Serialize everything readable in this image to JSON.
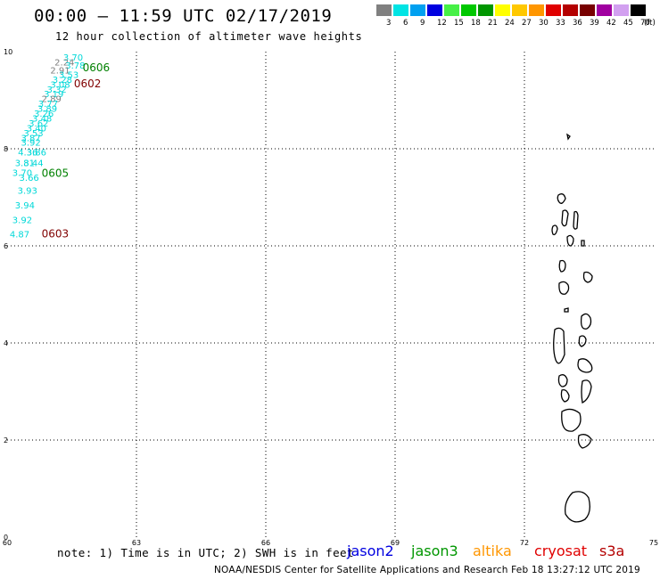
{
  "header": {
    "title": "00:00 – 11:59 UTC 02/17/2019",
    "subtitle": "12 hour collection of altimeter wave heights"
  },
  "colorbar": {
    "unit": "(ft)",
    "bins": [
      {
        "label": "3",
        "color": "#808080"
      },
      {
        "label": "6",
        "color": "#00e4e4"
      },
      {
        "label": "9",
        "color": "#00a0f0"
      },
      {
        "label": "12",
        "color": "#0000e0"
      },
      {
        "label": "15",
        "color": "#46f046"
      },
      {
        "label": "18",
        "color": "#00c800"
      },
      {
        "label": "21",
        "color": "#009600"
      },
      {
        "label": "24",
        "color": "#ffff00"
      },
      {
        "label": "27",
        "color": "#ffc800"
      },
      {
        "label": "30",
        "color": "#ff9600"
      },
      {
        "label": "33",
        "color": "#e00000"
      },
      {
        "label": "36",
        "color": "#b40000"
      },
      {
        "label": "39",
        "color": "#780000"
      },
      {
        "label": "42",
        "color": "#a000a0"
      },
      {
        "label": "45",
        "color": "#d2a0f0"
      },
      {
        "label": "70",
        "color": "#000000"
      }
    ]
  },
  "map": {
    "lon_range": [
      60,
      75
    ],
    "lat_range": [
      0,
      10
    ],
    "x_ticks": [
      "60",
      "63",
      "66",
      "69",
      "72",
      "75"
    ],
    "y_ticks": [
      "0",
      "2",
      "4",
      "6",
      "8",
      "10"
    ],
    "grid": true
  },
  "observations": [
    {
      "lon": 61.3,
      "lat": 9.82,
      "value": "3.70",
      "color": "#00d8d8"
    },
    {
      "lon": 61.1,
      "lat": 9.72,
      "value": "2.24",
      "color": "#808080"
    },
    {
      "lon": 61.35,
      "lat": 9.65,
      "value": "3.78",
      "color": "#00d8d8"
    },
    {
      "lon": 61.0,
      "lat": 9.55,
      "value": "2.91",
      "color": "#808080"
    },
    {
      "lon": 61.2,
      "lat": 9.46,
      "value": "3.53",
      "color": "#00d8d8"
    },
    {
      "lon": 61.05,
      "lat": 9.36,
      "value": "3.28",
      "color": "#00d8d8"
    },
    {
      "lon": 61.0,
      "lat": 9.26,
      "value": "3.08",
      "color": "#00d8d8"
    },
    {
      "lon": 60.92,
      "lat": 9.16,
      "value": "3.32",
      "color": "#00d8d8"
    },
    {
      "lon": 60.85,
      "lat": 9.06,
      "value": "3.19",
      "color": "#00d8d8"
    },
    {
      "lon": 60.8,
      "lat": 8.96,
      "value": "2.89",
      "color": "#808080"
    },
    {
      "lon": 60.72,
      "lat": 8.86,
      "value": "3.77",
      "color": "#00d8d8"
    },
    {
      "lon": 60.7,
      "lat": 8.76,
      "value": "3.89",
      "color": "#00d8d8"
    },
    {
      "lon": 60.62,
      "lat": 8.66,
      "value": "3.26",
      "color": "#00d8d8"
    },
    {
      "lon": 60.58,
      "lat": 8.56,
      "value": "3.48",
      "color": "#00d8d8"
    },
    {
      "lon": 60.5,
      "lat": 8.46,
      "value": "3.62",
      "color": "#00d8d8"
    },
    {
      "lon": 60.45,
      "lat": 8.36,
      "value": "3.40",
      "color": "#00d8d8"
    },
    {
      "lon": 60.38,
      "lat": 8.26,
      "value": "3.53",
      "color": "#00d8d8"
    },
    {
      "lon": 60.32,
      "lat": 8.16,
      "value": "3.87",
      "color": "#00d8d8"
    },
    {
      "lon": 60.32,
      "lat": 8.06,
      "value": "3.92",
      "color": "#00d8d8"
    },
    {
      "lon": 60.25,
      "lat": 7.86,
      "value": "4.36",
      "color": "#00d8d8"
    },
    {
      "lon": 60.45,
      "lat": 7.86,
      "value": "3.86",
      "color": "#00d8d8"
    },
    {
      "lon": 60.18,
      "lat": 7.64,
      "value": "3.81",
      "color": "#00d8d8"
    },
    {
      "lon": 60.38,
      "lat": 7.64,
      "value": "3.44",
      "color": "#00d8d8"
    },
    {
      "lon": 60.12,
      "lat": 7.44,
      "value": "3.70",
      "color": "#00d8d8"
    },
    {
      "lon": 60.28,
      "lat": 7.34,
      "value": "3.66",
      "color": "#00d8d8"
    },
    {
      "lon": 60.24,
      "lat": 7.07,
      "value": "3.93",
      "color": "#00d8d8"
    },
    {
      "lon": 60.18,
      "lat": 6.77,
      "value": "3.94",
      "color": "#00d8d8"
    },
    {
      "lon": 60.12,
      "lat": 6.47,
      "value": "3.92",
      "color": "#00d8d8"
    },
    {
      "lon": 60.06,
      "lat": 6.17,
      "value": "4.87",
      "color": "#00d8d8"
    }
  ],
  "time_labels": [
    {
      "lon": 61.75,
      "lat": 9.6,
      "text": "0606",
      "color": "#008000"
    },
    {
      "lon": 61.55,
      "lat": 9.27,
      "text": "0602",
      "color": "#800000"
    },
    {
      "lon": 60.8,
      "lat": 7.42,
      "text": "0605",
      "color": "#008000"
    },
    {
      "lon": 60.8,
      "lat": 6.17,
      "text": "0603",
      "color": "#800000"
    }
  ],
  "footer": {
    "note": "note: 1) Time is in UTC; 2) SWH is in feet",
    "satellites": [
      {
        "name": "jason2",
        "color": "#0000e0"
      },
      {
        "name": "jason3",
        "color": "#009600"
      },
      {
        "name": "altika",
        "color": "#ff9600"
      },
      {
        "name": "cryosat",
        "color": "#e00000"
      },
      {
        "name": "s3a",
        "color": "#b40000"
      }
    ],
    "credit": "NOAA/NESDIS Center for Satellite Applications and Research   Feb 18 13:27:12 UTC 2019"
  }
}
